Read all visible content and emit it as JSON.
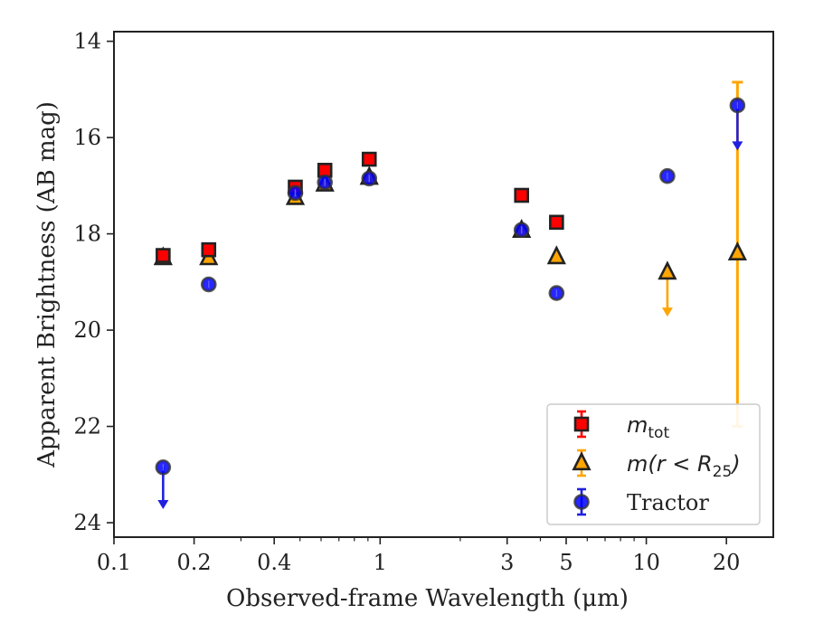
{
  "chart_data": {
    "type": "scatter",
    "xlabel": "Observed-frame Wavelength (μm)",
    "ylabel": "Apparent Brightness (AB mag)",
    "xscale": "log",
    "xlim": [
      0.1,
      30
    ],
    "ylim": [
      24.3,
      13.8
    ],
    "y_inverted": true,
    "grid": false,
    "legend_position": "lower-right",
    "x_ticks": [
      0.1,
      0.2,
      0.4,
      1,
      3,
      5,
      10,
      20
    ],
    "x_tick_labels": [
      "0.1",
      "0.2",
      "0.4",
      "1",
      "3",
      "5",
      "10",
      "20"
    ],
    "y_ticks": [
      14,
      16,
      18,
      20,
      22,
      24
    ],
    "y_tick_labels": [
      "14",
      "16",
      "18",
      "20",
      "22",
      "24"
    ],
    "colors": {
      "m_tot": "#ff0000",
      "m_r25": "#ffa500",
      "tractor": "#0000ff",
      "edge": "#222222",
      "tractor_err": "#2020e0",
      "axis": "#222222"
    },
    "series": [
      {
        "name": "m_tot",
        "legend_base": "m",
        "legend_sub": "tot",
        "marker": "square",
        "points": [
          {
            "x": 0.153,
            "y": 18.45
          },
          {
            "x": 0.227,
            "y": 18.33
          },
          {
            "x": 0.48,
            "y": 17.03
          },
          {
            "x": 0.62,
            "y": 16.68
          },
          {
            "x": 0.91,
            "y": 16.45
          },
          {
            "x": 3.4,
            "y": 17.2
          },
          {
            "x": 4.6,
            "y": 17.76
          }
        ]
      },
      {
        "name": "m(r < R_25)",
        "legend_base": "m(r < R",
        "legend_sub": "25",
        "legend_tail": ")",
        "marker": "triangle",
        "points": [
          {
            "x": 0.153,
            "y": 18.5
          },
          {
            "x": 0.227,
            "y": 18.5
          },
          {
            "x": 0.48,
            "y": 17.25
          },
          {
            "x": 0.62,
            "y": 16.97
          },
          {
            "x": 0.91,
            "y": 16.83
          },
          {
            "x": 3.4,
            "y": 17.93
          },
          {
            "x": 4.6,
            "y": 18.48
          },
          {
            "x": 12.0,
            "y": 18.8,
            "upper_limit_to": 19.7
          },
          {
            "x": 22.0,
            "y": 18.4,
            "err_low": 14.85,
            "err_high": 22.0
          }
        ]
      },
      {
        "name": "Tractor",
        "legend_base": "Tractor",
        "marker": "circle",
        "points": [
          {
            "x": 0.153,
            "y": 22.85,
            "upper_limit_to": 23.7
          },
          {
            "x": 0.227,
            "y": 19.05
          },
          {
            "x": 0.48,
            "y": 17.15
          },
          {
            "x": 0.62,
            "y": 16.93
          },
          {
            "x": 0.91,
            "y": 16.85
          },
          {
            "x": 3.4,
            "y": 17.92
          },
          {
            "x": 4.6,
            "y": 19.23
          },
          {
            "x": 12.0,
            "y": 16.8
          },
          {
            "x": 22.0,
            "y": 15.33,
            "upper_limit_to": 16.25
          }
        ]
      }
    ]
  }
}
